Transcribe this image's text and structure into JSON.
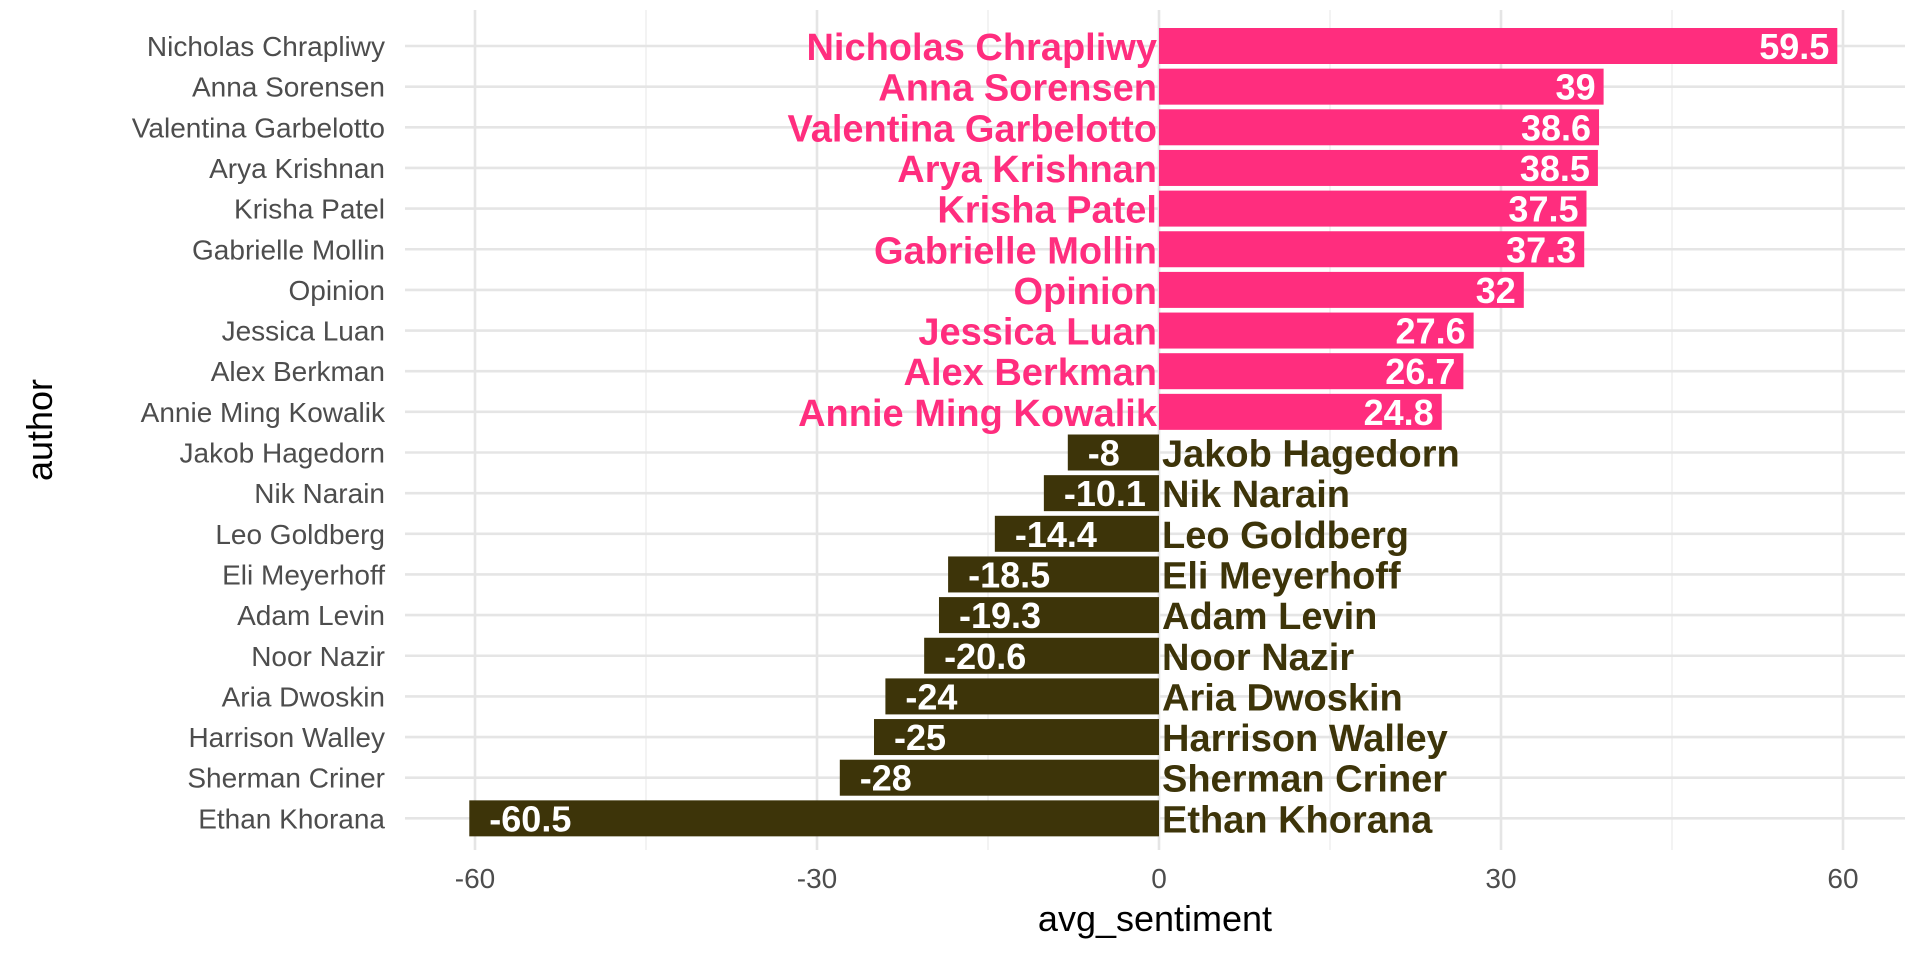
{
  "colors": {
    "positive": "#FF2D7E",
    "negative": "#3D3409",
    "grid_major": "#e5e5e5",
    "grid_minor": "#f0f0f0",
    "tick_text": "#4d4d4d"
  },
  "chart_data": {
    "type": "bar",
    "orientation": "horizontal",
    "xlabel": "avg_sentiment",
    "ylabel": "author",
    "xlim": [
      -63,
      63
    ],
    "x_ticks": [
      -60,
      -30,
      0,
      30,
      60
    ],
    "x_tick_labels": [
      "-60",
      "-30",
      "0",
      "30",
      "60"
    ],
    "grid": true,
    "legend": "none",
    "categories": [
      "Nicholas Chrapliwy",
      "Anna Sorensen",
      "Valentina Garbelotto",
      "Arya Krishnan",
      "Krisha Patel",
      "Gabrielle Mollin",
      "Opinion",
      "Jessica Luan",
      "Alex Berkman",
      "Annie Ming Kowalik",
      "Jakob Hagedorn",
      "Nik Narain",
      "Leo Goldberg",
      "Eli Meyerhoff",
      "Adam Levin",
      "Noor Nazir",
      "Aria Dwoskin",
      "Harrison Walley",
      "Sherman Criner",
      "Ethan Khorana"
    ],
    "values": [
      59.5,
      39,
      38.6,
      38.5,
      37.5,
      37.3,
      32,
      27.6,
      26.7,
      24.8,
      -8,
      -10.1,
      -14.4,
      -18.5,
      -19.3,
      -20.6,
      -24,
      -25,
      -28,
      -60.5
    ],
    "value_labels": [
      "59.5",
      "39",
      "38.6",
      "38.5",
      "37.5",
      "37.3",
      "32",
      "27.6",
      "26.7",
      "24.8",
      "-8",
      "-10.1",
      "-14.4",
      "-18.5",
      "-19.3",
      "-20.6",
      "-24",
      "-25",
      "-28",
      "-60.5"
    ]
  }
}
